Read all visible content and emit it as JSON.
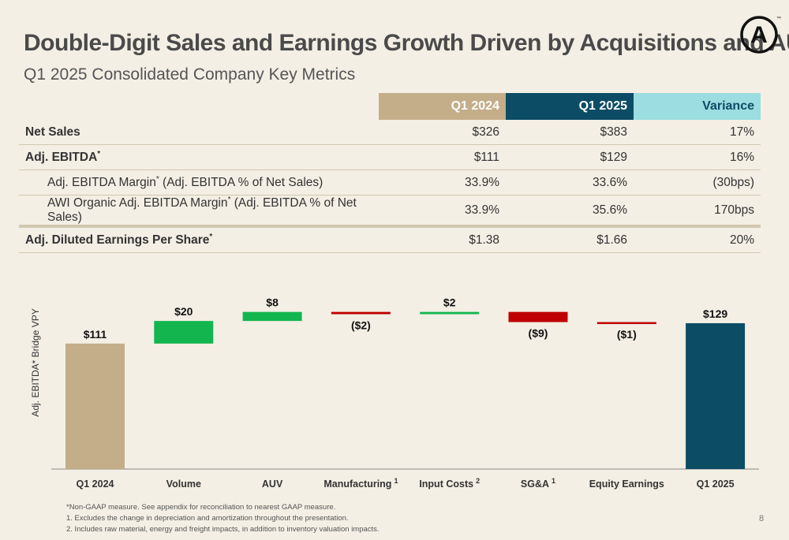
{
  "header": {
    "title": "Double-Digit Sales and Earnings Growth Driven by Acquisitions and AUV",
    "subtitle": "Q1 2025 Consolidated Company Key Metrics"
  },
  "logo": {
    "letter": "A",
    "trademark": "™"
  },
  "table": {
    "columns": [
      "Q1 2024",
      "Q1 2025",
      "Variance"
    ],
    "rows": [
      {
        "label": "Net Sales",
        "mark": "",
        "suffix": "",
        "values": [
          "$326",
          "$383",
          "17%"
        ]
      },
      {
        "label": "Adj. EBITDA",
        "mark": "*",
        "suffix": "",
        "values": [
          "$111",
          "$129",
          "16%"
        ]
      },
      {
        "label": "Adj. EBITDA Margin",
        "mark": "*",
        "suffix": " (Adj. EBITDA % of Net Sales)",
        "values": [
          "33.9%",
          "33.6%",
          "(30bps)"
        ]
      },
      {
        "label": "AWI Organic Adj. EBITDA Margin",
        "mark": "*",
        "suffix": " (Adj. EBITDA % of Net Sales)",
        "values": [
          "33.9%",
          "35.6%",
          "170bps"
        ]
      },
      {
        "label": "Adj. Diluted Earnings Per Share",
        "mark": "*",
        "suffix": "",
        "values": [
          "$1.38",
          "$1.66",
          "20%"
        ]
      }
    ]
  },
  "chart_data": {
    "type": "waterfall",
    "ylabel": "Adj. EBITDA* Bridge VPY",
    "categories": [
      "Q1 2024",
      "Volume",
      "AUV",
      "Manufacturing",
      "Input Costs",
      "SG&A",
      "Equity Earnings",
      "Q1 2025"
    ],
    "footnote_marks": [
      "",
      "",
      "",
      "1",
      "2",
      "1",
      "",
      ""
    ],
    "values": [
      111,
      20,
      8,
      -2,
      2,
      -9,
      -1,
      129
    ],
    "kinds": [
      "total",
      "delta",
      "delta",
      "delta",
      "delta",
      "delta",
      "delta",
      "total"
    ],
    "labels": [
      "$111",
      "$20",
      "$8",
      "($2)",
      "$2",
      "($9)",
      "($1)",
      "$129"
    ],
    "colors": {
      "start_total": "#c4ad89",
      "end_total": "#0c4c65",
      "increase": "#13b54f",
      "decrease": "#c00000"
    }
  },
  "footnotes": [
    "*Non-GAAP measure. See appendix for reconciliation to nearest GAAP measure.",
    "1. Excludes the change in depreciation and amortization throughout the presentation.",
    "2. Includes raw material, energy and freight impacts, in addition to inventory valuation impacts."
  ],
  "page_number": "8"
}
